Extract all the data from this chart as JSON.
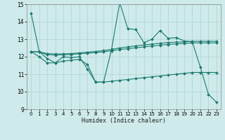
{
  "xlabel": "Humidex (Indice chaleur)",
  "ylabel": "",
  "xlim": [
    -0.5,
    23.5
  ],
  "ylim": [
    9,
    15
  ],
  "yticks": [
    9,
    10,
    11,
    12,
    13,
    14,
    15
  ],
  "xticks": [
    0,
    1,
    2,
    3,
    4,
    5,
    6,
    7,
    8,
    9,
    10,
    11,
    12,
    13,
    14,
    15,
    16,
    17,
    18,
    19,
    20,
    21,
    22,
    23
  ],
  "bg_color": "#ceeaea",
  "grid_color": "#b8d8d8",
  "line_color": "#1a7a6e",
  "marker": "D",
  "markersize": 2.0,
  "linewidth": 0.8,
  "series": [
    {
      "x": [
        0,
        1,
        2,
        3,
        4,
        5,
        6,
        7,
        8,
        9,
        10,
        11,
        12,
        13,
        14,
        15,
        16,
        17,
        18,
        19,
        20,
        21,
        22,
        23
      ],
      "y": [
        14.5,
        12.3,
        11.9,
        11.65,
        12.0,
        11.95,
        12.0,
        11.3,
        10.55,
        10.55,
        12.45,
        15.1,
        13.6,
        13.55,
        12.8,
        13.0,
        13.5,
        13.05,
        13.1,
        12.9,
        12.85,
        11.4,
        9.85,
        9.4
      ]
    },
    {
      "x": [
        0,
        1,
        2,
        3,
        4,
        5,
        6,
        7,
        8,
        9,
        10,
        11,
        12,
        13,
        14,
        15,
        16,
        17,
        18,
        19,
        20,
        21,
        22,
        23
      ],
      "y": [
        12.3,
        12.28,
        12.18,
        12.15,
        12.16,
        12.18,
        12.22,
        12.26,
        12.3,
        12.35,
        12.42,
        12.5,
        12.56,
        12.62,
        12.67,
        12.72,
        12.77,
        12.81,
        12.83,
        12.85,
        12.88,
        12.88,
        12.88,
        12.88
      ]
    },
    {
      "x": [
        0,
        1,
        2,
        3,
        4,
        5,
        6,
        7,
        8,
        9,
        10,
        11,
        12,
        13,
        14,
        15,
        16,
        17,
        18,
        19,
        20,
        21,
        22,
        23
      ],
      "y": [
        12.3,
        12.27,
        12.12,
        12.1,
        12.11,
        12.13,
        12.17,
        12.2,
        12.24,
        12.28,
        12.34,
        12.41,
        12.46,
        12.51,
        12.56,
        12.61,
        12.66,
        12.7,
        12.73,
        12.76,
        12.79,
        12.79,
        12.79,
        12.79
      ]
    },
    {
      "x": [
        0,
        1,
        2,
        3,
        4,
        5,
        6,
        7,
        8,
        9,
        10,
        11,
        12,
        13,
        14,
        15,
        16,
        17,
        18,
        19,
        20,
        21,
        22,
        23
      ],
      "y": [
        12.3,
        12.0,
        11.65,
        11.65,
        11.75,
        11.8,
        11.85,
        11.55,
        10.55,
        10.55,
        10.6,
        10.65,
        10.7,
        10.75,
        10.8,
        10.85,
        10.9,
        10.95,
        11.0,
        11.05,
        11.1,
        11.1,
        11.1,
        11.1
      ]
    }
  ]
}
